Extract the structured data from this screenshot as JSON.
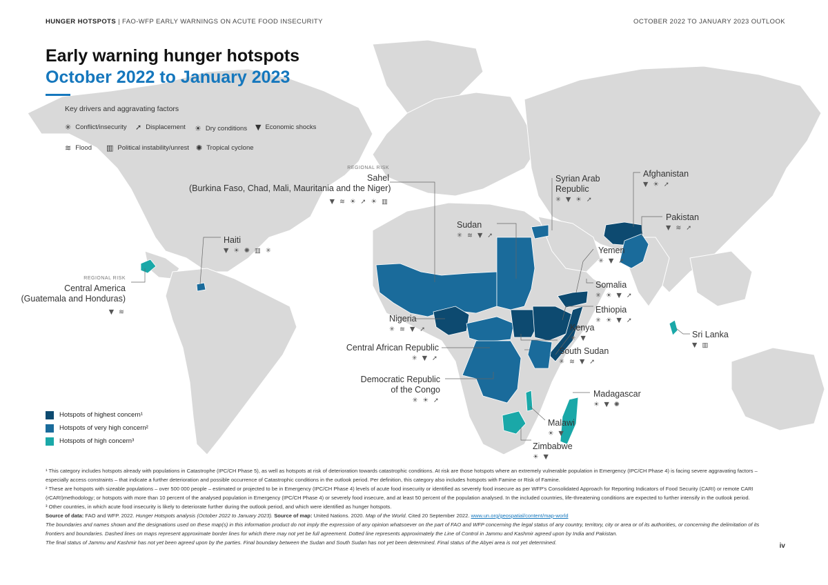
{
  "header": {
    "left_bold": "HUNGER HOTSPOTS",
    "left_rest": " | FAO-WFP EARLY WARNINGS ON ACUTE FOOD INSECURITY",
    "right": "OCTOBER 2022 TO JANUARY 2023 OUTLOOK"
  },
  "title": {
    "line1": "Early warning hunger hotspots",
    "line2": "October 2022 to January 2023"
  },
  "drivers_legend": {
    "title": "Key drivers and aggravating factors",
    "items": [
      {
        "icon": "conflict-icon",
        "glyph": "✳",
        "label": "Conflict/insecurity"
      },
      {
        "icon": "displacement-icon",
        "glyph": "➚",
        "label": "Displacement"
      },
      {
        "icon": "dry-conditions-icon",
        "glyph": "☀",
        "label": "Dry conditions"
      },
      {
        "icon": "economic-shocks-icon",
        "glyph": "▼",
        "label": "Economic shocks"
      },
      {
        "icon": "flood-icon",
        "glyph": "≋",
        "label": "Flood"
      },
      {
        "icon": "political-instability-icon",
        "glyph": "▥",
        "label": "Political instability/unrest"
      },
      {
        "icon": "tropical-cyclone-icon",
        "glyph": "✺",
        "label": "Tropical cyclone"
      }
    ]
  },
  "concern_legend": [
    {
      "label": "Hotspots of highest concern¹",
      "color": "#0d4a70"
    },
    {
      "label": "Hotspots of very high concern²",
      "color": "#1a6b9b"
    },
    {
      "label": "Hotspots of high concern³",
      "color": "#1aa8a8"
    }
  ],
  "colors": {
    "land": "#d9d9d9",
    "sea": "#ffffff",
    "highest": "#0d4a70",
    "very_high": "#1a6b9b",
    "high": "#1aa8a8",
    "accent": "#1577bd"
  },
  "hotspots": [
    {
      "name": "Afghanistan",
      "concern": "highest",
      "icons": "▼ ☀ ➚"
    },
    {
      "name": "Pakistan",
      "concern": "very high",
      "icons": "▼ ≋ ➚"
    },
    {
      "name": "Syrian Arab Republic",
      "name_lines": [
        "Syrian Arab",
        "Republic"
      ],
      "concern": "very high",
      "icons": "✳ ▼ ☀ ➚"
    },
    {
      "name": "Yemen",
      "concern": "highest",
      "icons": "✳ ▼ ➚"
    },
    {
      "name": "Somalia",
      "concern": "highest",
      "icons": "✳ ☀ ▼ ➚"
    },
    {
      "name": "Ethiopia",
      "concern": "highest",
      "icons": "✳ ☀ ▼ ➚"
    },
    {
      "name": "Kenya",
      "concern": "very high",
      "icons": "☀ ▼"
    },
    {
      "name": "South Sudan",
      "concern": "highest",
      "icons": "✳ ≋ ▼ ➚"
    },
    {
      "name": "Sudan",
      "concern": "very high",
      "icons": "✳ ≋ ▼ ➚"
    },
    {
      "name": "Nigeria",
      "concern": "highest",
      "icons": "✳ ≋ ▼ ➚"
    },
    {
      "name": "Central African Republic",
      "concern": "very high",
      "icons": "✳ ▼ ➚"
    },
    {
      "name": "Democratic Republic of the Congo",
      "name_lines": [
        "Democratic Republic",
        "of the Congo"
      ],
      "concern": "very high",
      "icons": "✳ ☀ ➚"
    },
    {
      "name": "Madagascar",
      "concern": "high",
      "icons": "☀ ▼ ✺"
    },
    {
      "name": "Malawi",
      "concern": "high",
      "icons": "☀ ▼"
    },
    {
      "name": "Zimbabwe",
      "concern": "high",
      "icons": "☀ ▼"
    },
    {
      "name": "Sri Lanka",
      "concern": "high",
      "icons": "▼ ▥"
    },
    {
      "name": "Haiti",
      "concern": "very high",
      "icons": "▼ ☀ ✺ ▥ ✳"
    }
  ],
  "regional": {
    "tag": "REGIONAL RISK",
    "sahel": {
      "name": "Sahel",
      "countries": "(Burkina Faso, Chad, Mali, Mauritania and the Niger)",
      "icons": "▼ ≋ ☀ ➚ ☀ ▥"
    },
    "central_america": {
      "name": "Central America",
      "countries": "(Guatemala and Honduras)",
      "icons": "▼ ≋"
    }
  },
  "footnotes": {
    "n1": "¹ This category includes hotspots already with populations in Catastrophe (IPC/CH Phase 5), as well as hotspots at risk of deterioration towards catastrophic conditions. At risk are those hotspots where an extremely vulnerable population in Emergency (IPC/CH Phase 4) is facing severe aggravating factors – especially access constraints – that indicate a further deterioration and possible occurrence of Catastrophic conditions in the outlook period. Per definition, this category also includes hotspots with Famine or Risk of Famine.",
    "n2": "² These are hotspots with sizeable populations – over 500 000 people – estimated or projected to be in Emergency (IPC/CH Phase 4) levels of acute food insecurity or identified as severely food insecure as per WFP's Consolidated Approach for Reporting Indicators of Food Security (CARI) or remote CARI (rCARI)methodology; or hotspots with more than 10 percent of the analysed population in Emergency (IPC/CH Phase 4) or severely food insecure, and at least 50 percent of the population analysed. In the included countries, life-threatening conditions are expected to further intensify in the outlook period.",
    "n3": "³ Other countries, in which acute food insecurity is likely to deteriorate further during the outlook period, and which were identified as hunger hotspots.",
    "src_data_label": "Source of data:",
    "src_data_text": " FAO and WFP. 2022. ",
    "src_data_title": "Hunger Hotspots analysis (October 2022 to January 2023).",
    "src_map_label": " Source of map:",
    "src_map_text": " United Nations. 2020. ",
    "src_map_title": "Map of the World.",
    "src_map_cited": " Cited 20 September 2022. ",
    "src_map_url": "www.un.org/geospatial/content/map-world",
    "disclaimer1": "The boundaries and names shown and the designations used on these map(s) in this information product do not imply the expression of any opinion whatsoever on the part of FAO and WFP concerning the legal status of any country, territory, city or area or of its authorities, or concerning the delimitation of its frontiers and boundaries. Dashed lines on maps represent approximate border lines for which there may not yet be full agreement. Dotted line represents approximately the Line of Control in Jammu and Kashmir agreed upon by India and Pakistan.",
    "disclaimer2": "The final status of Jammu and Kashmir has not yet been agreed upon by the parties. Final boundary between the Sudan and South Sudan has not yet been determined. Final status of the Abyei area is not yet determined."
  },
  "page_number": "iv"
}
